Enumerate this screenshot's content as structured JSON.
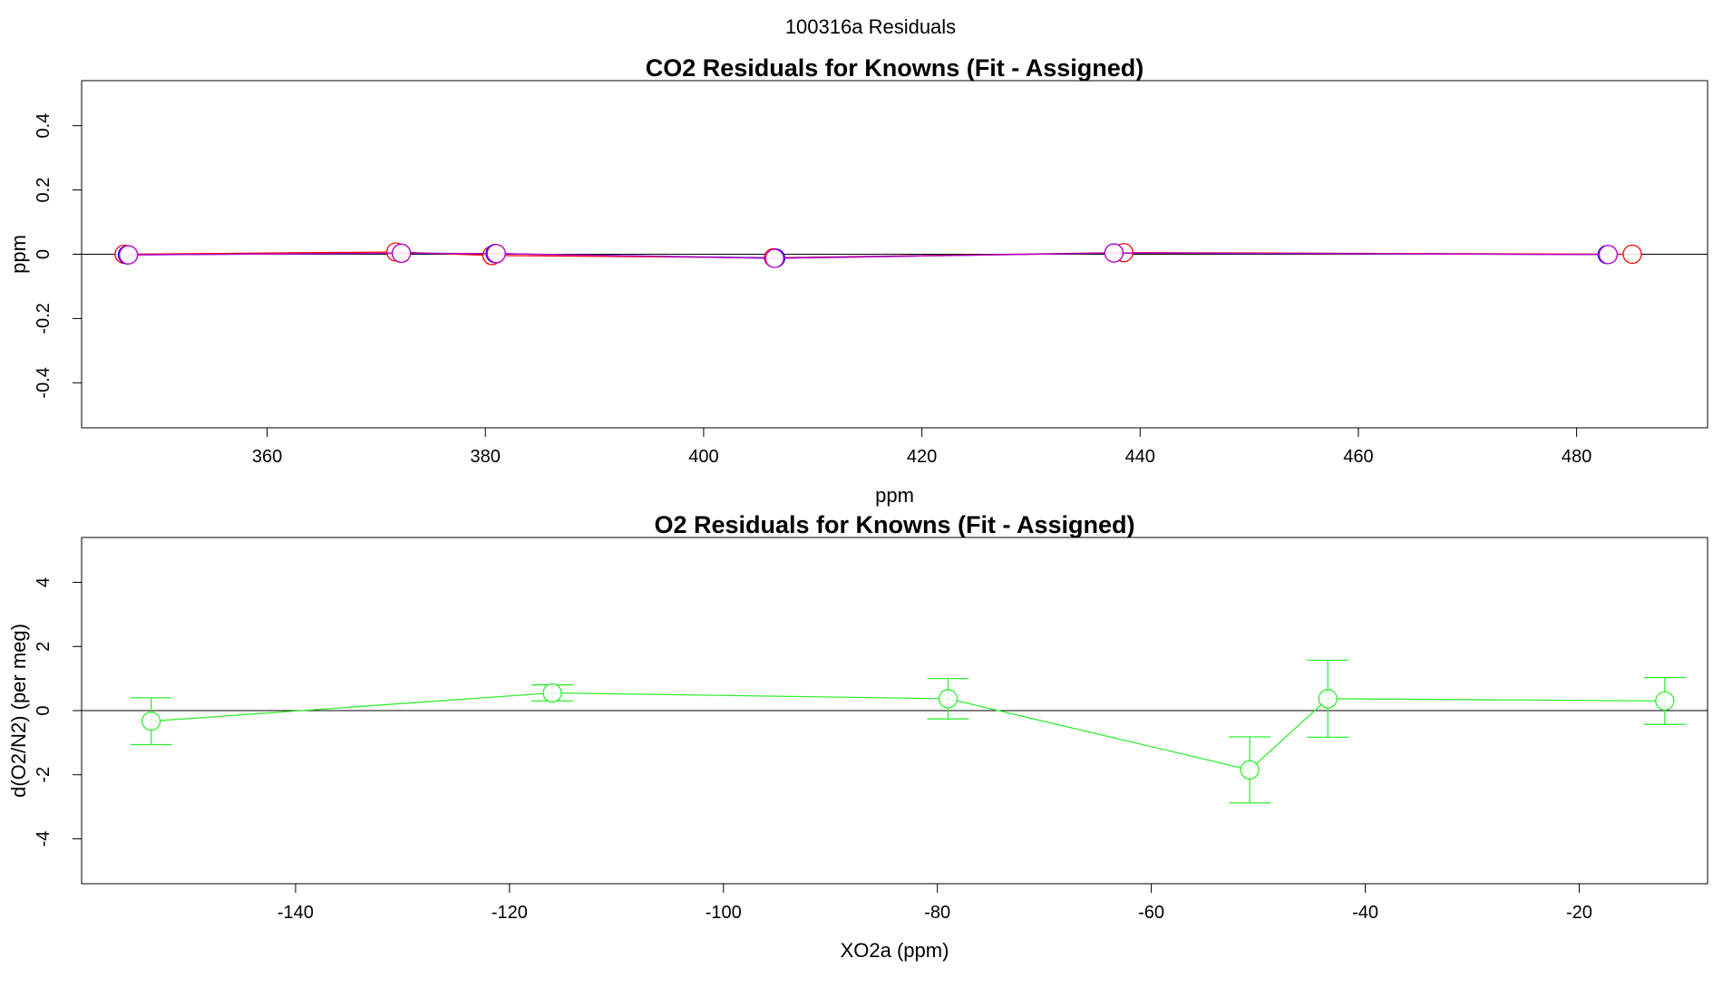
{
  "figure": {
    "title": "100316a  Residuals"
  },
  "chart_data": [
    {
      "type": "line",
      "title": "CO2 Residuals for Knowns (Fit - Assigned)",
      "xlabel": "ppm",
      "ylabel": "ppm",
      "xlim": [
        343,
        492
      ],
      "ylim": [
        -0.54,
        0.54
      ],
      "xticks": [
        360,
        380,
        400,
        420,
        440,
        460,
        480
      ],
      "yticks": [
        -0.4,
        -0.2,
        0.0,
        0.2,
        0.4
      ],
      "zero_line": true,
      "grid": false,
      "series": [
        {
          "color": "#ff0000",
          "marker": "open-circle",
          "x": [
            346.9,
            371.8,
            380.6,
            406.4,
            438.5,
            485.1
          ],
          "y": [
            0.0,
            0.007,
            -0.004,
            -0.011,
            0.005,
            0.0
          ]
        },
        {
          "color": "#0000ff",
          "marker": "open-circle",
          "x": [
            347.2,
            372.3,
            380.9,
            406.6,
            437.6,
            482.8
          ],
          "y": [
            -0.002,
            0.003,
            0.002,
            -0.012,
            0.004,
            -0.001
          ]
        },
        {
          "color": "#c000c0",
          "marker": "open-circle",
          "x": [
            347.3,
            372.3,
            381.0,
            406.5,
            437.6,
            482.9
          ],
          "y": [
            -0.002,
            0.003,
            0.002,
            -0.013,
            0.004,
            -0.001
          ]
        }
      ]
    },
    {
      "type": "line",
      "title": "O2 Residuals for Knowns (Fit - Assigned)",
      "xlabel": "XO2a (ppm)",
      "ylabel": "d(O2/N2) (per meg)",
      "xlim": [
        -160,
        -8
      ],
      "ylim": [
        -5.4,
        5.4
      ],
      "xticks": [
        -140,
        -120,
        -100,
        -80,
        -60,
        -40,
        -20
      ],
      "yticks": [
        -4,
        -2,
        0,
        2,
        4
      ],
      "zero_line": true,
      "grid": false,
      "series": [
        {
          "color": "#33ee33",
          "marker": "open-circle",
          "error_bars": true,
          "x": [
            -153.5,
            -116.0,
            -79.0,
            -50.8,
            -43.5,
            -12.0
          ],
          "y": [
            -0.33,
            0.55,
            0.37,
            -1.85,
            0.37,
            0.3
          ],
          "yerr": [
            0.73,
            0.25,
            0.63,
            1.03,
            1.2,
            0.73
          ]
        }
      ]
    }
  ]
}
